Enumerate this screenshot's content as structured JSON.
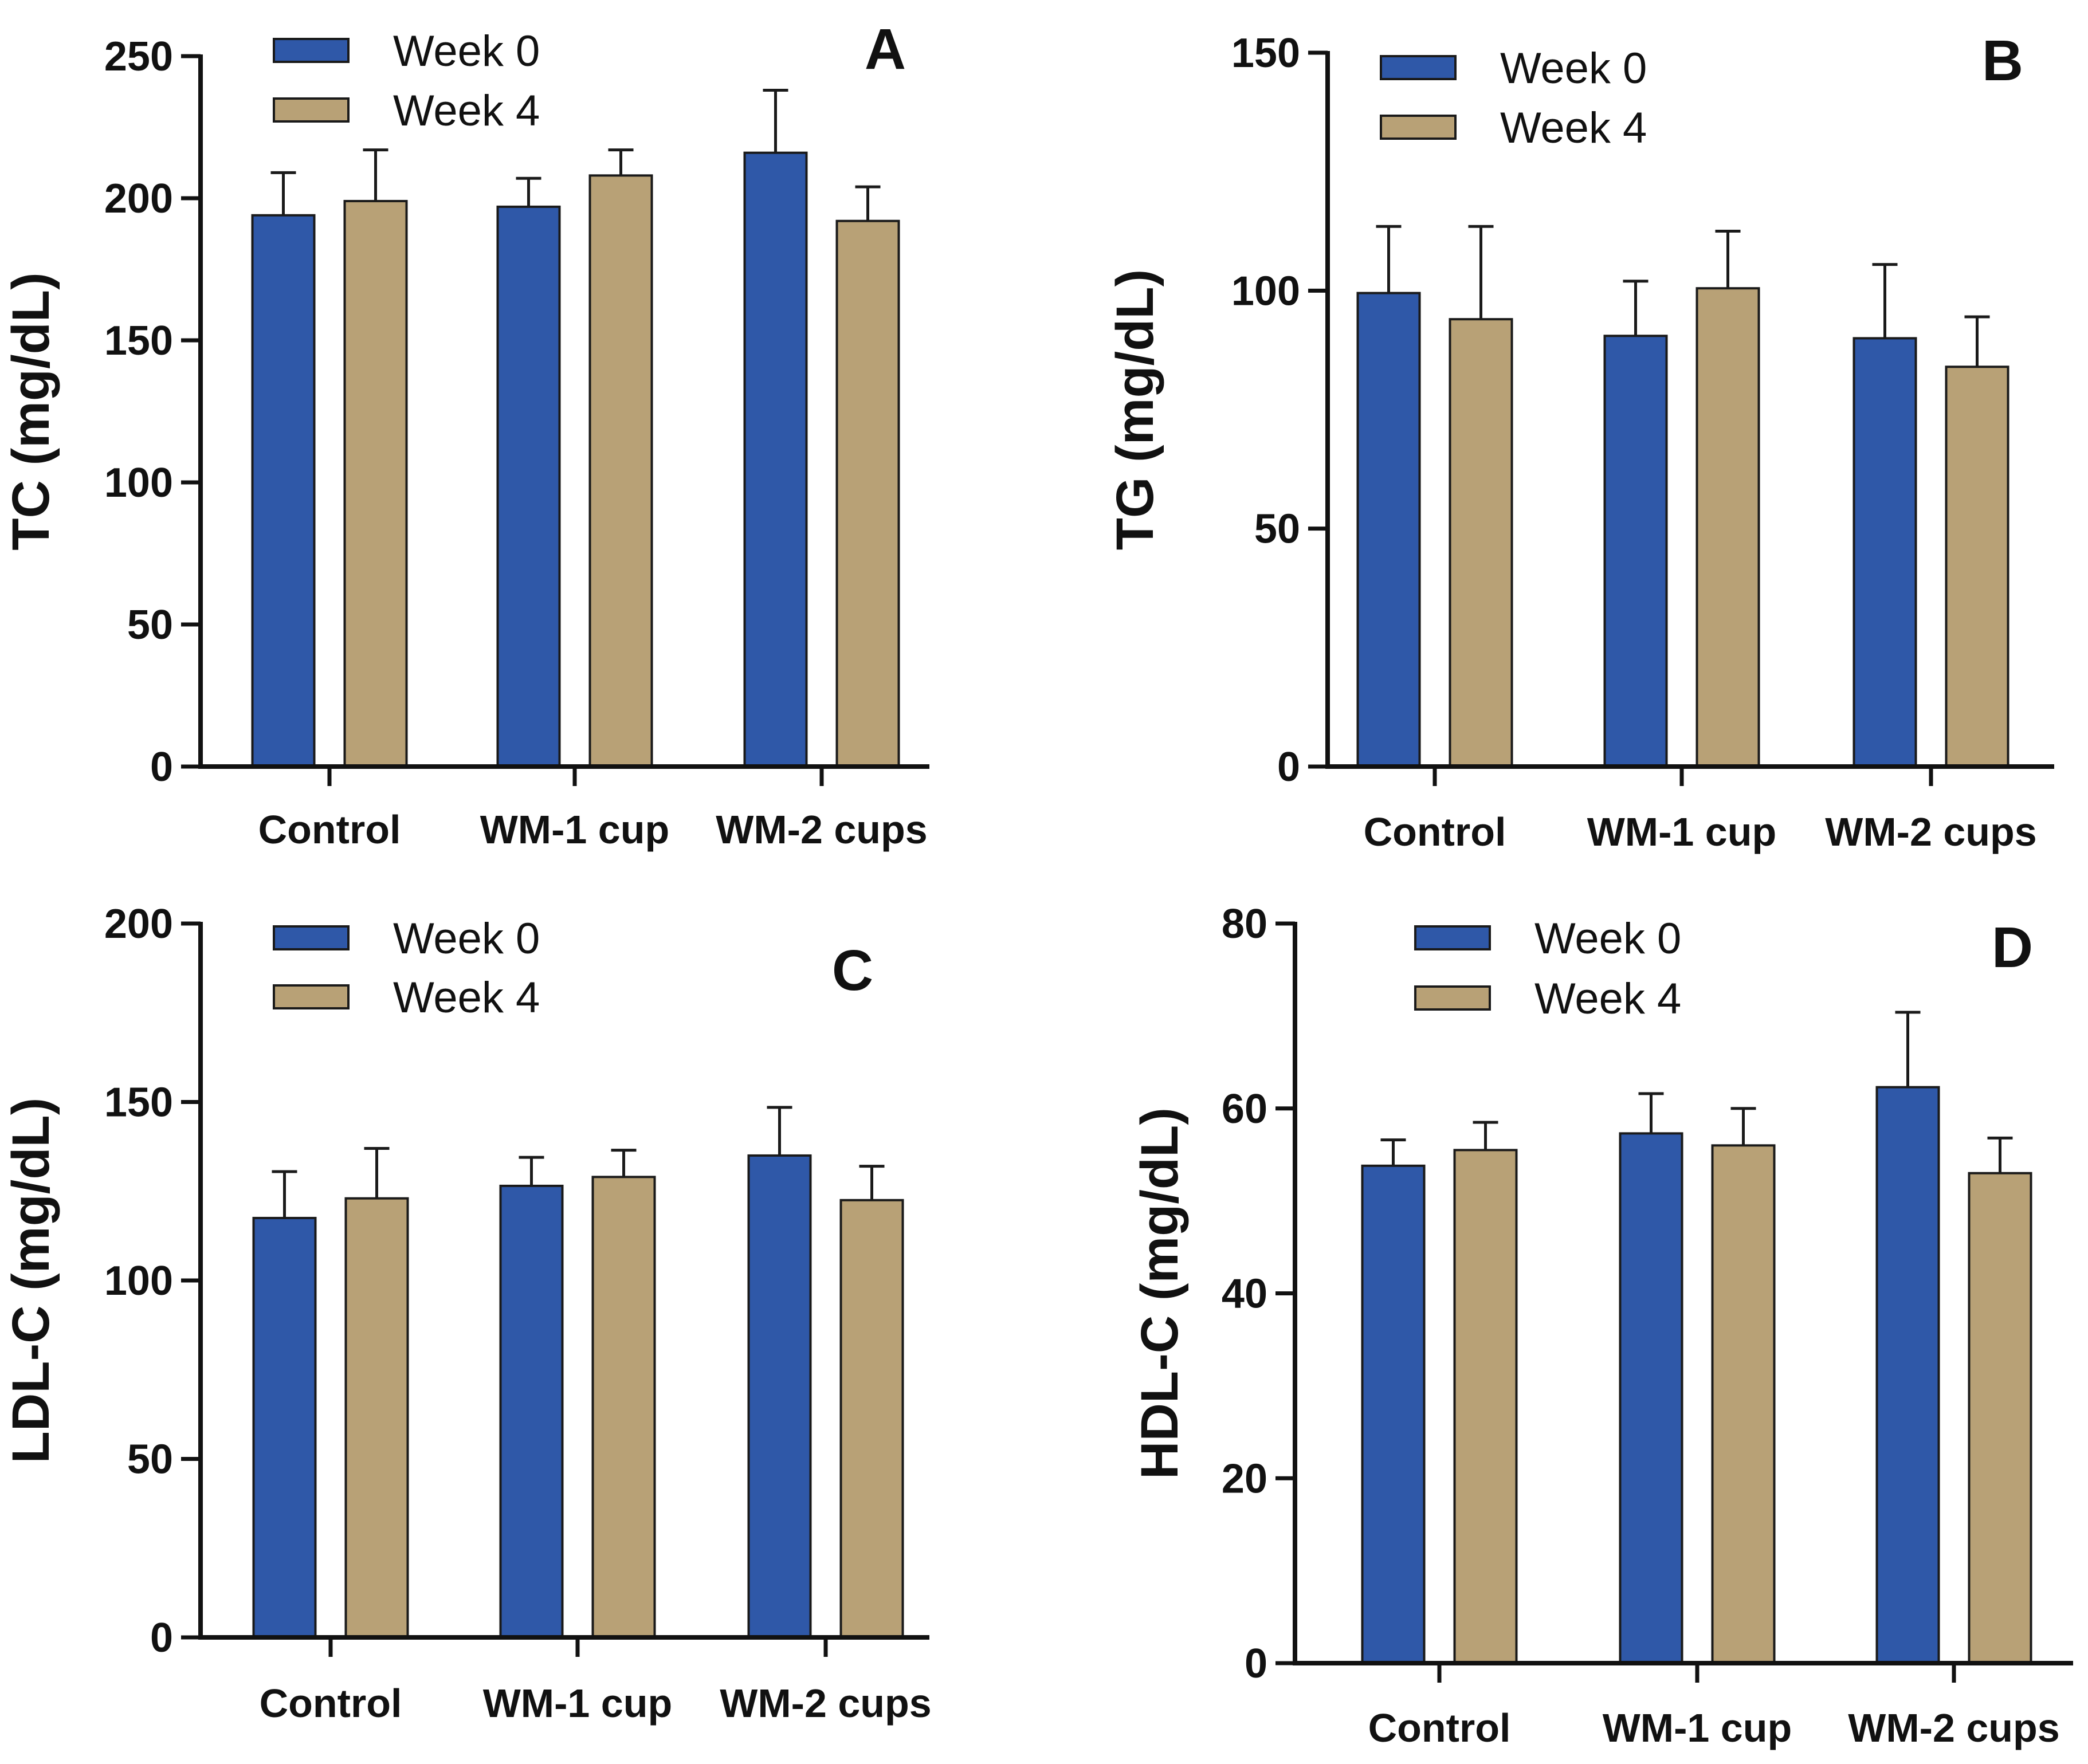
{
  "figure": {
    "colors": {
      "week0": "#2f58a8",
      "week4": "#b8a176",
      "outline": "#1a1a1a",
      "axis": "#111111"
    },
    "legend": [
      "Week 0",
      "Week 4"
    ]
  },
  "chart_data": [
    {
      "type": "bar",
      "panel": "A",
      "ylabel": "TC (mg/dL)",
      "categories": [
        "Control",
        "WM-1 cup",
        "WM-2 cups"
      ],
      "ylim": [
        0,
        250
      ],
      "yticks": [
        0,
        50,
        100,
        150,
        200,
        250
      ],
      "series": [
        {
          "name": "Week 0",
          "values": [
            194,
            197,
            216
          ],
          "errors": [
            15,
            10,
            22
          ]
        },
        {
          "name": "Week 4",
          "values": [
            199,
            208,
            192
          ],
          "errors": [
            18,
            9,
            12
          ]
        }
      ]
    },
    {
      "type": "bar",
      "panel": "B",
      "ylabel": "TG (mg/dL)",
      "categories": [
        "Control",
        "WM-1 cup",
        "WM-2 cups"
      ],
      "ylim": [
        0,
        150
      ],
      "yticks": [
        0,
        50,
        100,
        150
      ],
      "series": [
        {
          "name": "Week 0",
          "values": [
            99.5,
            90.5,
            90
          ],
          "errors": [
            14,
            11.5,
            15.5
          ]
        },
        {
          "name": "Week 4",
          "values": [
            94,
            100.5,
            84
          ],
          "errors": [
            19.5,
            12,
            10.5
          ]
        }
      ]
    },
    {
      "type": "bar",
      "panel": "C",
      "ylabel": "LDL-C (mg/dL)",
      "categories": [
        "Control",
        "WM-1 cup",
        "WM-2 cups"
      ],
      "ylim": [
        0,
        200
      ],
      "yticks": [
        0,
        50,
        100,
        150,
        200
      ],
      "series": [
        {
          "name": "Week 0",
          "values": [
            117.5,
            126.5,
            135
          ],
          "errors": [
            13,
            8,
            13.5
          ]
        },
        {
          "name": "Week 4",
          "values": [
            123,
            129,
            122.5
          ],
          "errors": [
            14,
            7.5,
            9.5
          ]
        }
      ]
    },
    {
      "type": "bar",
      "panel": "D",
      "ylabel": "HDL-C (mg/dL)",
      "categories": [
        "Control",
        "WM-1 cup",
        "WM-2 cups"
      ],
      "ylim": [
        0,
        80
      ],
      "yticks": [
        0,
        20,
        40,
        60,
        80
      ],
      "series": [
        {
          "name": "Week 0",
          "values": [
            53.8,
            57.3,
            62.3
          ],
          "errors": [
            2.8,
            4.3,
            8.1
          ]
        },
        {
          "name": "Week 4",
          "values": [
            55.5,
            56,
            53
          ],
          "errors": [
            3,
            4,
            3.8
          ]
        }
      ]
    }
  ]
}
